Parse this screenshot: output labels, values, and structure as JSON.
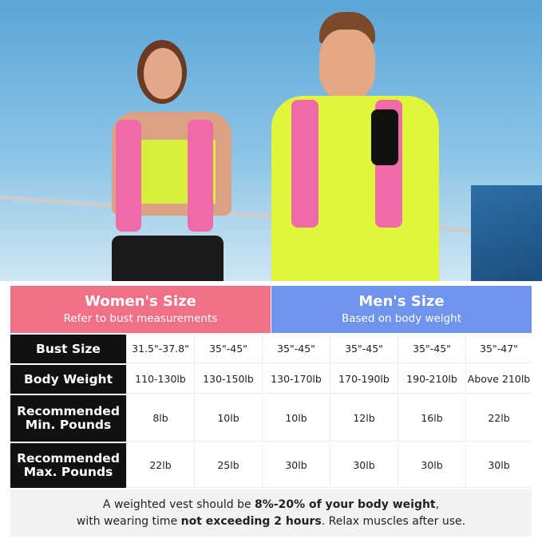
{
  "header": {
    "women": {
      "title": "Women's Size",
      "subtitle": "Refer to bust measurements",
      "color": "#f07088"
    },
    "men": {
      "title": "Men's Size",
      "subtitle": "Based on body weight",
      "color": "#6f94ee"
    }
  },
  "rows": [
    {
      "label": "Bust Size",
      "values": [
        "31.5\"-37.8\"",
        "35\"-45\"",
        "35\"-45\"",
        "35\"-45\"",
        "35\"-45\"",
        "35\"-47\""
      ]
    },
    {
      "label": "Body Weight",
      "values": [
        "110-130lb",
        "130-150lb",
        "130-170lb",
        "170-190lb",
        "190-210lb",
        "Above 210lb"
      ]
    },
    {
      "label": "Recommended Min. Pounds",
      "values": [
        "8lb",
        "10lb",
        "10lb",
        "12lb",
        "16lb",
        "22lb"
      ]
    },
    {
      "label": "Recommended Max. Pounds",
      "values": [
        "22lb",
        "25lb",
        "30lb",
        "30lb",
        "30lb",
        "30lb"
      ]
    }
  ],
  "footer": {
    "line1_a": "A weighted vest should be ",
    "line1_b": "8%-20% of your body weight",
    ",line1_c": ",",
    "line2_a": "with wearing time ",
    "line2_b": "not exceeding 2 hours",
    "line2_c": ". Relax muscles after use."
  }
}
